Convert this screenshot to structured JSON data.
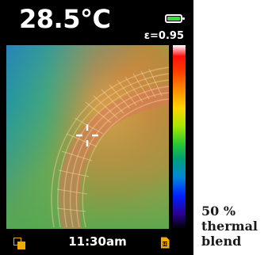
{
  "display": {
    "temperature": "28.5°C",
    "emissivity": "ε=0.95",
    "time": "11:30am",
    "battery_level": 1.0
  },
  "icons": {
    "battery": "battery-full-icon",
    "crosshair": "crosshair-icon",
    "gallery": "gallery-icon",
    "sd_card": "sd-card-icon"
  },
  "palette": [
    "#ffffff",
    "#ff1010",
    "#ff8a00",
    "#ffd400",
    "#26c832",
    "#0088d8",
    "#0020ff",
    "#000000"
  ],
  "colors": {
    "screen_bg": "#000000",
    "text": "#ffffff",
    "battery_fill": "#3ddc3a",
    "icon_accent": "#f2a900"
  },
  "caption": {
    "line1": "50 %",
    "line2": "thermal",
    "line3": "blend"
  }
}
